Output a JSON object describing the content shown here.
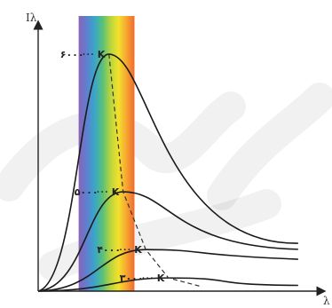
{
  "chart_data": {
    "type": "line",
    "title": "",
    "xlabel": "λ",
    "ylabel": "Iλ",
    "xlim": [
      0,
      10
    ],
    "ylim": [
      0,
      10
    ],
    "grid": false,
    "legend": "none",
    "visible_band": {
      "x_range": [
        1.43,
        3.4
      ],
      "colors": [
        "#8a63b8",
        "#5f7fd0",
        "#3aa6c9",
        "#58c07a",
        "#b8d53e",
        "#f2e12c",
        "#f7a531",
        "#f06a2e"
      ]
    },
    "series": [
      {
        "label": "۶۰۰۰K",
        "temp_number": "۶۰۰۰",
        "temp_unit": "K",
        "peak": [
          2.5,
          8.61
        ],
        "tail_end": [
          9.18,
          1.74
        ]
      },
      {
        "label": "۵۰۰۰K",
        "temp_number": "۵۰۰۰",
        "temp_unit": "K",
        "peak": [
          3.0,
          3.61
        ],
        "tail_end": [
          9.18,
          1.52
        ]
      },
      {
        "label": "۴۰۰۰K",
        "temp_number": "۴۰۰۰",
        "temp_unit": "K",
        "peak": [
          3.8,
          1.51
        ],
        "tail_end": [
          9.18,
          1.16
        ]
      },
      {
        "label": "۳۰۰۰K",
        "temp_number": "۳۰۰۰",
        "temp_unit": "K",
        "peak": [
          4.6,
          0.48
        ],
        "tail_end": [
          9.18,
          0.21
        ]
      }
    ]
  }
}
